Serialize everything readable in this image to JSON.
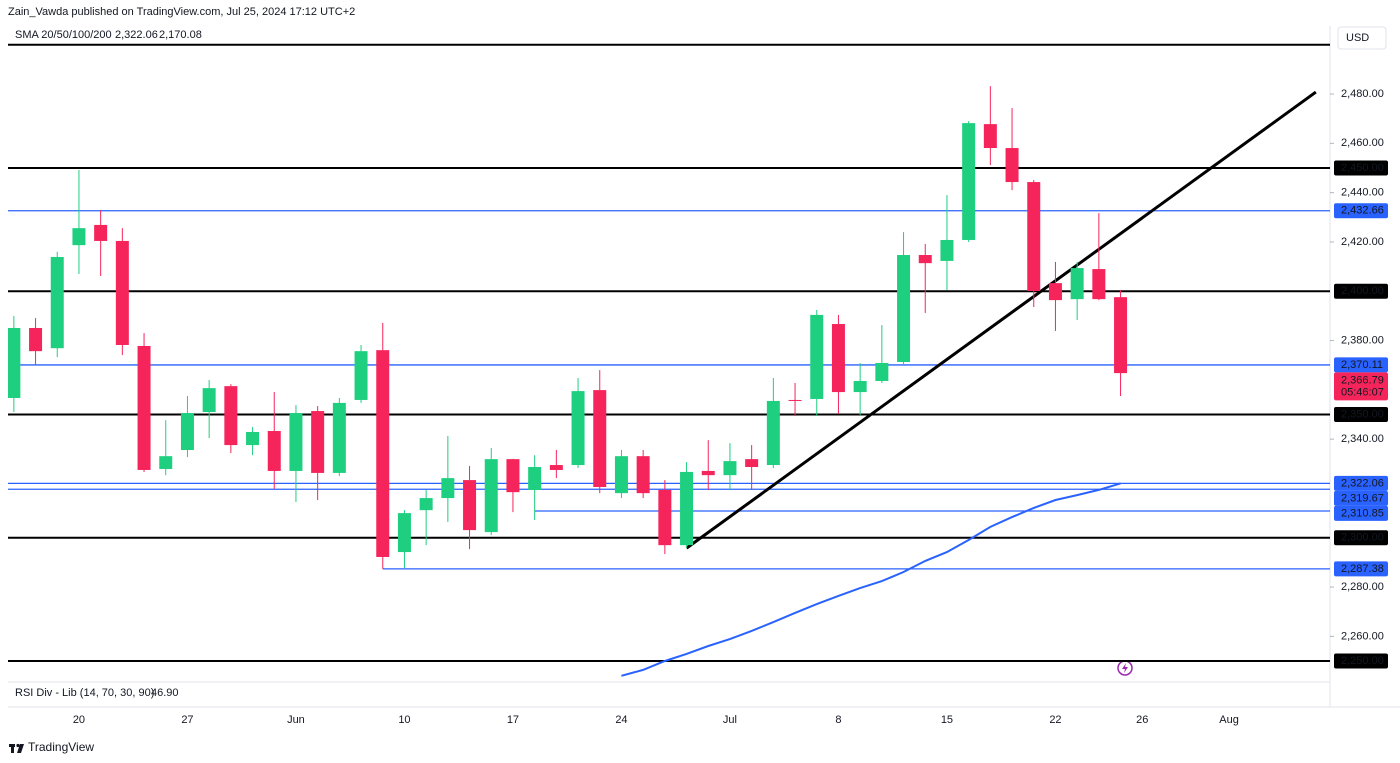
{
  "chart_data": {
    "type": "candlestick",
    "title": "Zain_Vawda published on TradingView.com, Jul 25, 2024 17:12 UTC+2",
    "indicator_legend": {
      "name": "SMA 20/50/100/200",
      "values": [
        {
          "label": "2,322.06",
          "color": "#2962ff"
        },
        {
          "label": "2,170.08",
          "color": "#f7a600"
        }
      ]
    },
    "currency": "USD",
    "rsi_label": "RSI Div - Lib (14, 70, 30, 90)",
    "rsi_value": "46.90",
    "brand": "TradingView",
    "up_color": "#1fcf80",
    "down_color": "#f5255c",
    "categories": [
      null,
      null,
      null,
      "20",
      null,
      null,
      null,
      null,
      "27",
      null,
      null,
      null,
      null,
      "Jun",
      null,
      null,
      null,
      null,
      "10",
      null,
      null,
      null,
      null,
      "17",
      null,
      null,
      null,
      null,
      "24",
      null,
      null,
      null,
      null,
      "Jul",
      null,
      null,
      null,
      null,
      "8",
      null,
      null,
      null,
      null,
      "15",
      null,
      null,
      null,
      null,
      "22",
      null,
      null,
      null,
      "26",
      null,
      null,
      null,
      "Aug",
      null,
      null,
      null,
      null
    ],
    "open": [
      2356.7,
      2385.1,
      2376.9,
      2418.7,
      2426.9,
      2420.4,
      2377.8,
      2327.9,
      2335.6,
      2351.0,
      2361.5,
      2337.6,
      2343.3,
      2327.1,
      2351.4,
      2326.3,
      2355.9,
      2376.1,
      2294.2,
      2311.2,
      2316.1,
      2323.4,
      2302.3,
      2331.9,
      2319.4,
      2329.5,
      2329.5,
      2359.9,
      2318.1,
      2333.1,
      2319.4,
      2297.0,
      2327.1,
      2325.4,
      2331.9,
      2329.5,
      2355.9,
      2356.3,
      2386.7,
      2359.1,
      2363.6,
      2371.3,
      2414.7,
      2412.3,
      2420.8,
      2467.8,
      2458.1,
      2444.3,
      2403.3,
      2396.8,
      2409.0,
      2397.6,
      null,
      null,
      null,
      null,
      null,
      null,
      null,
      null,
      null
    ],
    "high": [
      2390.0,
      2389.1,
      2416.0,
      2449.2,
      2432.9,
      2425.6,
      2383.0,
      2347.7,
      2357.5,
      2364.0,
      2362.3,
      2344.9,
      2359.1,
      2353.8,
      2353.4,
      2356.7,
      2378.2,
      2387.1,
      2311.2,
      2319.4,
      2341.3,
      2329.1,
      2336.4,
      2332.0,
      2333.5,
      2335.6,
      2364.8,
      2368.0,
      2335.6,
      2335.6,
      2323.4,
      2330.7,
      2339.6,
      2338.4,
      2337.6,
      2364.8,
      2362.8,
      2392.4,
      2390.4,
      2370.9,
      2386.3,
      2424.0,
      2419.2,
      2439.0,
      2469.0,
      2483.2,
      2474.3,
      2445.1,
      2411.9,
      2411.9,
      2431.7,
      2400.5,
      null,
      null,
      null,
      null,
      null,
      null,
      null,
      null,
      null
    ],
    "low": [
      2351.0,
      2370.0,
      2373.3,
      2407.0,
      2406.2,
      2374.1,
      2326.7,
      2325.4,
      2332.7,
      2340.4,
      2334.4,
      2333.5,
      2319.8,
      2314.5,
      2315.3,
      2325.0,
      2354.7,
      2287.4,
      2287.7,
      2297.0,
      2306.4,
      2295.4,
      2301.1,
      2310.4,
      2307.2,
      2324.2,
      2328.3,
      2318.1,
      2316.1,
      2316.1,
      2293.4,
      2295.8,
      2319.4,
      2319.4,
      2319.4,
      2328.3,
      2349.4,
      2349.4,
      2350.2,
      2349.8,
      2362.8,
      2370.5,
      2391.2,
      2400.5,
      2420.0,
      2451.2,
      2441.0,
      2393.6,
      2383.9,
      2388.3,
      2396.4,
      2357.5,
      null,
      null,
      null,
      null,
      null,
      null,
      null,
      null,
      null
    ],
    "close": [
      2385.1,
      2375.7,
      2413.9,
      2425.6,
      2420.4,
      2378.2,
      2327.5,
      2333.1,
      2350.6,
      2360.7,
      2337.6,
      2342.9,
      2327.1,
      2350.6,
      2326.3,
      2354.7,
      2375.7,
      2292.2,
      2310.0,
      2316.1,
      2324.2,
      2303.1,
      2331.9,
      2318.5,
      2328.7,
      2327.5,
      2359.5,
      2320.6,
      2333.1,
      2318.1,
      2297.0,
      2326.7,
      2325.4,
      2331.1,
      2328.7,
      2355.5,
      2355.5,
      2390.4,
      2359.1,
      2363.6,
      2370.9,
      2414.7,
      2411.4,
      2420.8,
      2468.2,
      2458.1,
      2444.3,
      2400.1,
      2396.4,
      2409.4,
      2396.8,
      2366.79,
      null,
      null,
      null,
      null,
      null,
      null,
      null,
      null,
      null
    ],
    "sma": {
      "color": "#2962ff",
      "values": [
        null,
        null,
        null,
        null,
        null,
        null,
        null,
        null,
        null,
        null,
        null,
        null,
        null,
        null,
        null,
        null,
        null,
        null,
        null,
        null,
        null,
        null,
        null,
        null,
        null,
        null,
        null,
        null,
        2244.0,
        2246.4,
        2250.0,
        2252.9,
        2256.1,
        2258.9,
        2262.2,
        2265.8,
        2269.5,
        2273.1,
        2276.4,
        2279.6,
        2282.4,
        2286.1,
        2290.6,
        2294.2,
        2299.1,
        2304.4,
        2308.4,
        2312.1,
        2315.3,
        2317.3,
        2319.4,
        2322.06,
        null,
        null,
        null,
        null,
        null,
        null,
        null,
        null,
        null
      ]
    },
    "trendline": {
      "color": "#000000",
      "x": [
        31,
        60
      ],
      "values": [
        2295.8,
        2480.8
      ]
    },
    "levels": [
      {
        "value": 2500,
        "color": "#000000"
      },
      {
        "value": 2450,
        "label": "2,450.00",
        "color": "#000000"
      },
      {
        "value": 2432.66,
        "label": "2,432.66",
        "color": "#2962ff"
      },
      {
        "value": 2400,
        "label": "2,400.00",
        "color": "#000000"
      },
      {
        "value": 2370.11,
        "label": "2,370.11",
        "color": "#2962ff"
      },
      {
        "value": 2350,
        "label": "2,350.00",
        "color": "#000000"
      },
      {
        "value": 2322.06,
        "label": "2,322.06",
        "color": "#2962ff"
      },
      {
        "value": 2319.67,
        "label": "2,319.67",
        "color": "#2962ff"
      },
      {
        "value": 2310.85,
        "label": "2,310.85",
        "color": "#2962ff",
        "from": 24
      },
      {
        "value": 2300,
        "label": "2,300.00",
        "color": "#000000"
      },
      {
        "value": 2287.38,
        "label": "2,287.38",
        "color": "#2962ff",
        "from": 17
      },
      {
        "value": 2250,
        "label": "2,250.00",
        "color": "#000000"
      }
    ],
    "last_price": {
      "value": 2366.79,
      "label": "2,366.79",
      "countdown": "05:46:07",
      "color": "#f5255c"
    },
    "ylim": [
      2242.3,
      2507.6
    ],
    "yticks": [
      {
        "value": 2260,
        "label": "2,260.00"
      },
      {
        "value": 2280,
        "label": "2,280.00"
      },
      {
        "value": 2340,
        "label": "2,340.00"
      },
      {
        "value": 2380,
        "label": "2,380.00"
      },
      {
        "value": 2420,
        "label": "2,420.00"
      },
      {
        "value": 2440,
        "label": "2,440.00"
      },
      {
        "value": 2460,
        "label": "2,460.00"
      },
      {
        "value": 2480,
        "label": "2,480.00"
      }
    ],
    "grid": false
  }
}
